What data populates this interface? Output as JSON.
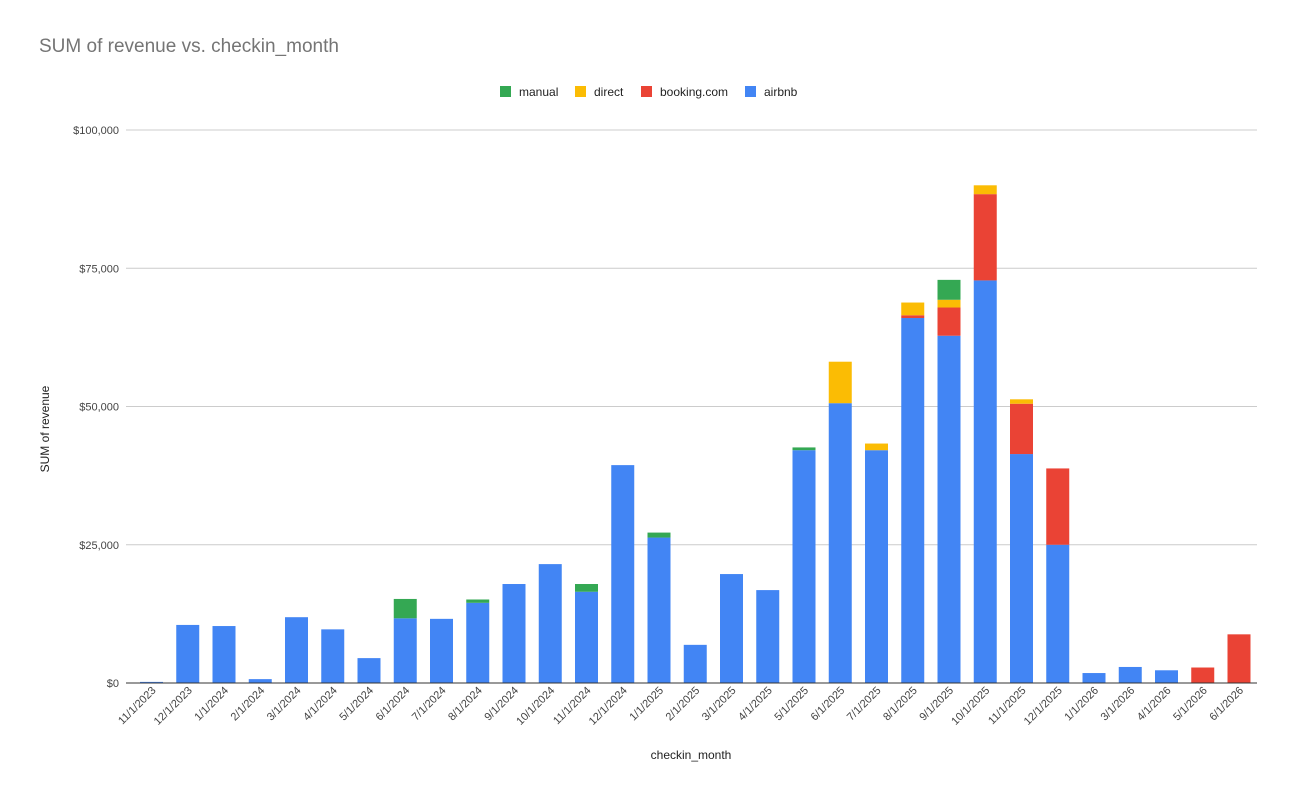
{
  "chart_data": {
    "type": "bar",
    "stacked": true,
    "title": "SUM of revenue vs. checkin_month",
    "xlabel": "checkin_month",
    "ylabel": "SUM of revenue",
    "ylim": [
      0,
      100000
    ],
    "yticks": [
      0,
      25000,
      50000,
      75000,
      100000
    ],
    "ytick_labels": [
      "$0",
      "$25,000",
      "$50,000",
      "$75,000",
      "$100,000"
    ],
    "grid": true,
    "legend_position": "top",
    "legend_order": [
      "manual",
      "direct",
      "booking.com",
      "airbnb"
    ],
    "categories": [
      "11/1/2023",
      "12/1/2023",
      "1/1/2024",
      "2/1/2024",
      "3/1/2024",
      "4/1/2024",
      "5/1/2024",
      "6/1/2024",
      "7/1/2024",
      "8/1/2024",
      "9/1/2024",
      "10/1/2024",
      "11/1/2024",
      "12/1/2024",
      "1/1/2025",
      "2/1/2025",
      "3/1/2025",
      "4/1/2025",
      "5/1/2025",
      "6/1/2025",
      "7/1/2025",
      "8/1/2025",
      "9/1/2025",
      "10/1/2025",
      "11/1/2025",
      "12/1/2025",
      "1/1/2026",
      "3/1/2026",
      "4/1/2026",
      "5/1/2026",
      "6/1/2026"
    ],
    "series": [
      {
        "name": "airbnb",
        "color": "#4285F4",
        "values": [
          200,
          10500,
          10300,
          700,
          11900,
          9700,
          4500,
          11700,
          11600,
          14500,
          17900,
          21500,
          16500,
          39400,
          26300,
          6900,
          19700,
          16800,
          42100,
          50600,
          42100,
          66000,
          62800,
          72800,
          41400,
          25000,
          1800,
          2900,
          2300,
          0,
          0
        ]
      },
      {
        "name": "booking.com",
        "color": "#EA4335",
        "values": [
          0,
          0,
          0,
          0,
          0,
          0,
          0,
          0,
          0,
          0,
          0,
          0,
          0,
          0,
          0,
          0,
          0,
          0,
          0,
          0,
          0,
          500,
          5100,
          15600,
          9100,
          13800,
          0,
          0,
          0,
          2800,
          8800
        ]
      },
      {
        "name": "direct",
        "color": "#FBBC04",
        "values": [
          0,
          0,
          0,
          0,
          0,
          0,
          0,
          0,
          0,
          0,
          0,
          0,
          0,
          0,
          0,
          0,
          0,
          0,
          0,
          7500,
          1200,
          2300,
          1400,
          1600,
          800,
          0,
          0,
          0,
          0,
          0,
          0
        ]
      },
      {
        "name": "manual",
        "color": "#34A853",
        "values": [
          0,
          0,
          0,
          0,
          0,
          0,
          0,
          3500,
          0,
          600,
          0,
          0,
          1400,
          0,
          900,
          0,
          0,
          0,
          500,
          0,
          0,
          0,
          3600,
          0,
          0,
          0,
          0,
          0,
          0,
          0,
          0
        ]
      }
    ]
  }
}
